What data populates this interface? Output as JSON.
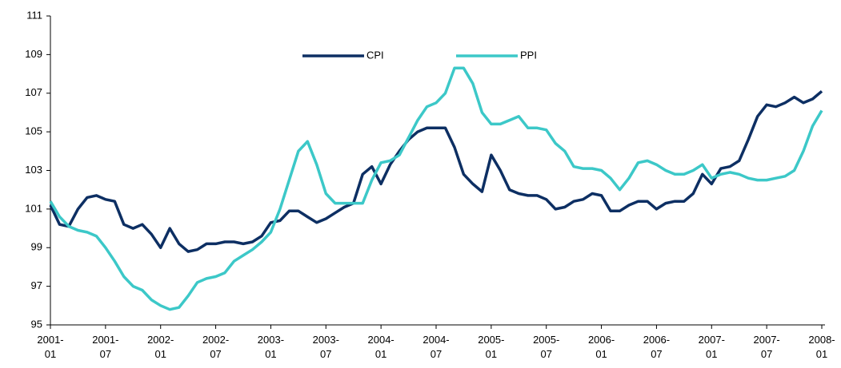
{
  "chart_data": {
    "type": "line",
    "categories": [
      "2001-01",
      null,
      null,
      null,
      null,
      null,
      "2001-07",
      null,
      null,
      null,
      null,
      null,
      "2002-01",
      null,
      null,
      null,
      null,
      null,
      "2002-07",
      null,
      null,
      null,
      null,
      null,
      "2003-01",
      null,
      null,
      null,
      null,
      null,
      "2003-07",
      null,
      null,
      null,
      null,
      null,
      "2004-01",
      null,
      null,
      null,
      null,
      null,
      "2004-07",
      null,
      null,
      null,
      null,
      null,
      "2005-01",
      null,
      null,
      null,
      null,
      null,
      "2005-07",
      null,
      null,
      null,
      null,
      null,
      "2006-01",
      null,
      null,
      null,
      null,
      null,
      "2006-07",
      null,
      null,
      null,
      null,
      null,
      "2007-01",
      null,
      null,
      null,
      null,
      null,
      "2007-07",
      null,
      null,
      null,
      null,
      null,
      "2008-01"
    ],
    "series": [
      {
        "name": "CPI",
        "color": "#0d2f63",
        "values": [
          101.2,
          100.2,
          100.1,
          101.0,
          101.6,
          101.7,
          101.5,
          101.4,
          100.2,
          100.0,
          100.2,
          99.7,
          99.0,
          100.0,
          99.2,
          98.8,
          98.9,
          99.2,
          99.2,
          99.3,
          99.3,
          99.2,
          99.3,
          99.6,
          100.3,
          100.4,
          100.9,
          100.9,
          100.6,
          100.3,
          100.5,
          100.8,
          101.1,
          101.3,
          102.8,
          103.2,
          102.3,
          103.3,
          104.0,
          104.6,
          105.0,
          105.2,
          105.2,
          105.2,
          104.2,
          102.8,
          102.3,
          101.9,
          103.8,
          103.0,
          102.0,
          101.8,
          101.7,
          101.7,
          101.5,
          101.0,
          101.1,
          101.4,
          101.5,
          101.8,
          101.7,
          100.9,
          100.9,
          101.2,
          101.4,
          101.4,
          101.0,
          101.3,
          101.4,
          101.4,
          101.8,
          102.8,
          102.3,
          103.1,
          103.2,
          103.5,
          104.6,
          105.8,
          106.4,
          106.3,
          106.5,
          106.8,
          106.5,
          106.7,
          107.1
        ]
      },
      {
        "name": "PPI",
        "color": "#3cc8c8",
        "values": [
          101.4,
          100.6,
          100.1,
          99.9,
          99.8,
          99.6,
          99.0,
          98.3,
          97.5,
          97.0,
          96.8,
          96.3,
          96.0,
          95.8,
          95.9,
          96.5,
          97.2,
          97.4,
          97.5,
          97.7,
          98.3,
          98.6,
          98.9,
          99.3,
          99.8,
          101.0,
          102.5,
          104.0,
          104.5,
          103.3,
          101.8,
          101.3,
          101.3,
          101.3,
          101.3,
          102.5,
          103.4,
          103.5,
          103.8,
          104.7,
          105.6,
          106.3,
          106.5,
          107.0,
          108.3,
          108.3,
          107.5,
          106.0,
          105.4,
          105.4,
          105.6,
          105.8,
          105.2,
          105.2,
          105.1,
          104.4,
          104.0,
          103.2,
          103.1,
          103.1,
          103.0,
          102.6,
          102.0,
          102.6,
          103.4,
          103.5,
          103.3,
          103.0,
          102.8,
          102.8,
          103.0,
          103.3,
          102.6,
          102.8,
          102.9,
          102.8,
          102.6,
          102.5,
          102.5,
          102.6,
          102.7,
          103.0,
          104.0,
          105.3,
          106.1
        ]
      }
    ],
    "ylim": [
      95,
      111
    ],
    "yticks": [
      95,
      97,
      99,
      101,
      103,
      105,
      107,
      109,
      111
    ],
    "grid": false,
    "legend": "top"
  }
}
